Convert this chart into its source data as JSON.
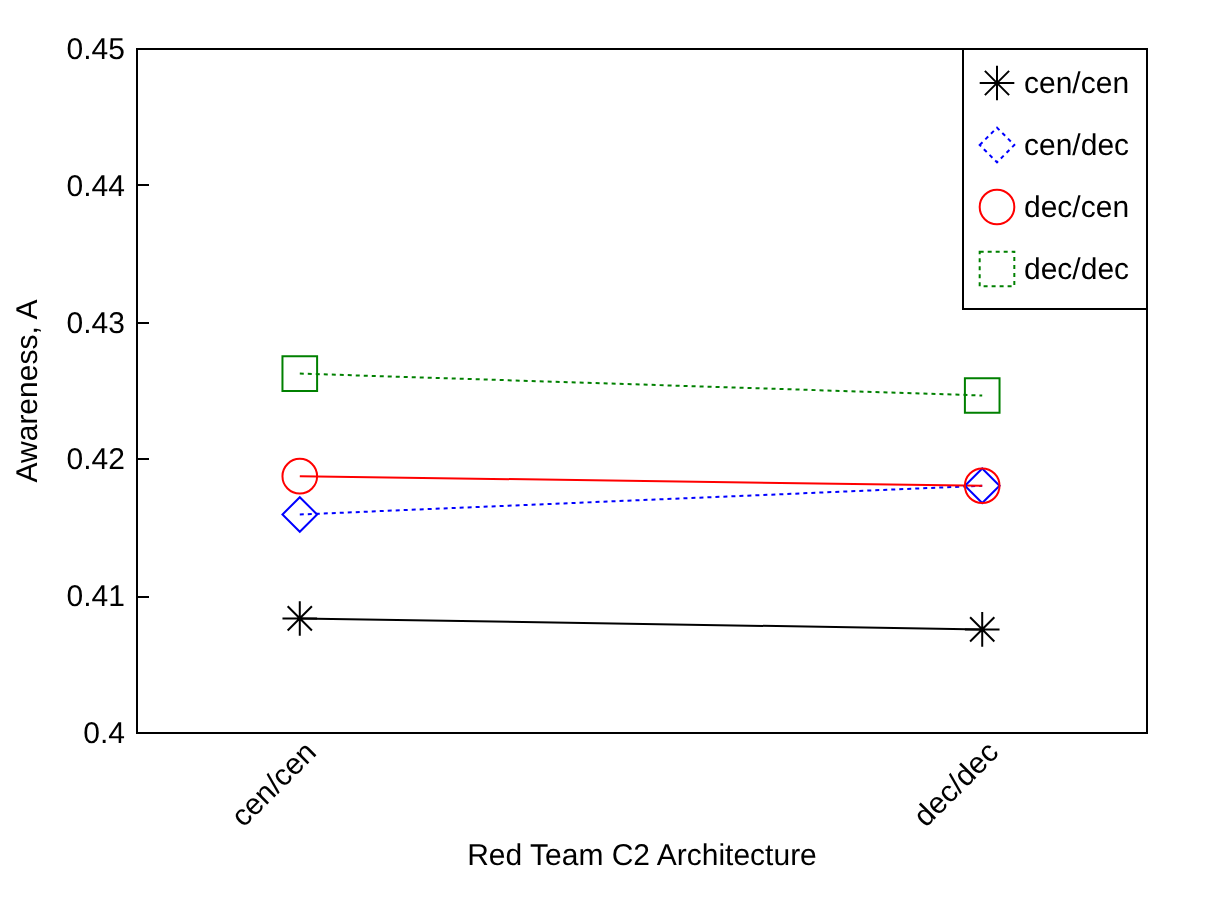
{
  "chart_data": {
    "type": "line",
    "xlabel": "Red Team C2 Architecture",
    "ylabel": "Awareness, A",
    "categories": [
      "cen/cen",
      "dec/dec"
    ],
    "ylim": [
      0.4,
      0.45
    ],
    "yticks": [
      {
        "value": 0.4,
        "label": "0.4"
      },
      0.41,
      0.42,
      0.43,
      0.44,
      0.45
    ],
    "grid": false,
    "legend": "top right",
    "series": [
      {
        "name": "cen/cen",
        "color": "#000000",
        "marker": "cross",
        "line_style": "solid",
        "values": [
          0.4083,
          0.4075
        ]
      },
      {
        "name": "cen/dec",
        "color": "#0000ff",
        "marker": "diamond",
        "line_style": "dotted",
        "values": [
          0.4159,
          0.418
        ]
      },
      {
        "name": "dec/cen",
        "color": "#ff0000",
        "marker": "circle",
        "line_style": "solid",
        "values": [
          0.4187,
          0.418
        ]
      },
      {
        "name": "dec/dec",
        "color": "#008000",
        "marker": "square",
        "line_style": "dotted",
        "values": [
          0.4262,
          0.4246
        ]
      }
    ]
  }
}
